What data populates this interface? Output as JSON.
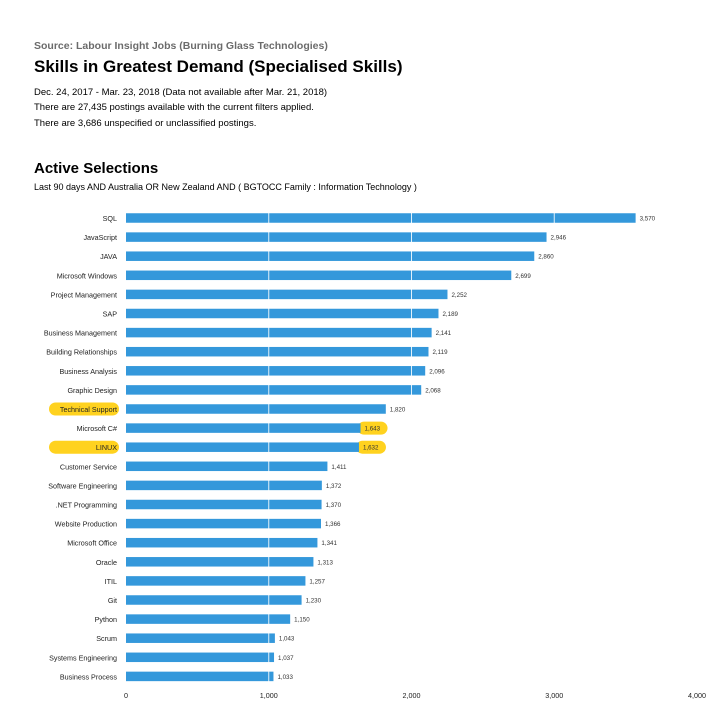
{
  "header": {
    "source": "Source: Labour Insight Jobs (Burning Glass Technologies)",
    "title": "Skills in Greatest Demand (Specialised Skills)",
    "date_range": "Dec.  24, 2017  - Mar.  23, 2018  (Data not available after  Mar.  21, 2018)",
    "postings_line": "There are 27,435 postings available with the current filters applied.",
    "unspecified_line": "There are 3,686 unspecified or unclassified postings."
  },
  "selections": {
    "title": "Active Selections",
    "description": "Last 90 days AND Australia OR New Zealand AND ( BGTOCC Family : Information Technology )"
  },
  "chart_data": {
    "type": "bar",
    "orientation": "horizontal",
    "categories": [
      "SQL",
      "JavaScript",
      "JAVA",
      "Microsoft Windows",
      "Project Management",
      "SAP",
      "Business Management",
      "Building Relationships",
      "Business Analysis",
      "Graphic Design",
      "Technical Support",
      "Microsoft C#",
      "LINUX",
      "Customer Service",
      "Software Engineering",
      ".NET Programming",
      "Website Production",
      "Microsoft Office",
      "Oracle",
      "ITIL",
      "Git",
      "Python",
      "Scrum",
      "Systems Engineering",
      "Business Process"
    ],
    "values": [
      3570,
      2946,
      2860,
      2699,
      2252,
      2189,
      2141,
      2119,
      2096,
      2068,
      1820,
      1643,
      1632,
      1411,
      1372,
      1370,
      1366,
      1341,
      1313,
      1257,
      1230,
      1150,
      1043,
      1037,
      1033
    ],
    "value_labels": [
      "3,570",
      "2,946",
      "2,860",
      "2,699",
      "2,252",
      "2,189",
      "2,141",
      "2,119",
      "2,096",
      "2,068",
      "1,820",
      "1,643",
      "1,632",
      "1,411",
      "1,372",
      "1,370",
      "1,366",
      "1,341",
      "1,313",
      "1,257",
      "1,230",
      "1,150",
      "1,043",
      "1,037",
      "1,033"
    ],
    "highlighted_categories": [
      "Technical Support",
      "LINUX"
    ],
    "highlighted_values": [
      "Microsoft C#",
      "LINUX"
    ],
    "xticks": [
      0,
      1000,
      2000,
      3000,
      4000
    ],
    "xtick_labels": [
      "0",
      "1,000",
      "2,000",
      "3,000",
      "4,000"
    ],
    "xlim": [
      0,
      4000
    ],
    "grid": true,
    "bar_color": "#3498db",
    "highlight_color": "#ffd21f"
  }
}
